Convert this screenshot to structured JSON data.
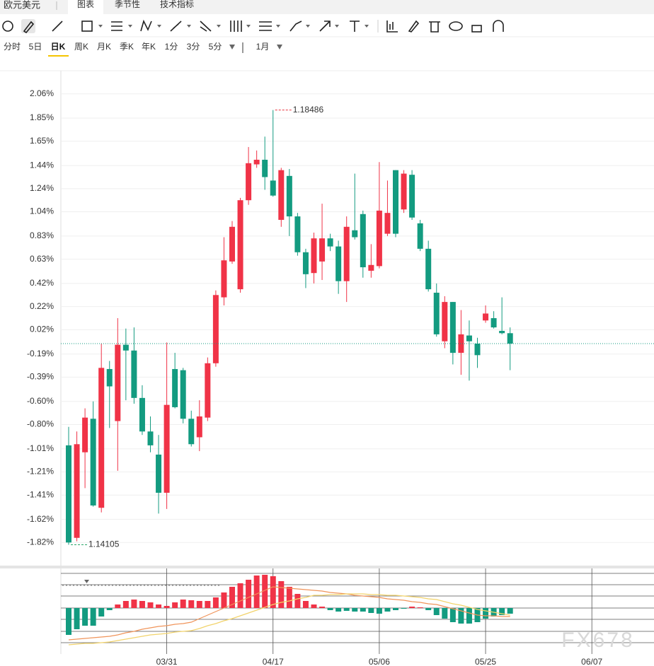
{
  "header": {
    "title": "欧元美元",
    "tabs": [
      "图表",
      "季节性",
      "技术指标"
    ]
  },
  "periods": [
    "分时",
    "5日",
    "日K",
    "周K",
    "月K",
    "季K",
    "年K",
    "1分",
    "3分",
    "5分"
  ],
  "range": "1月",
  "watermark": "FX678",
  "chart_data": [
    {
      "type": "candlestick",
      "categories": [
        null,
        null,
        null,
        null,
        null,
        null,
        null,
        null,
        null,
        null,
        null,
        null,
        "03/31",
        null,
        null,
        null,
        null,
        null,
        null,
        null,
        null,
        null,
        null,
        null,
        null,
        "04/17",
        null,
        null,
        null,
        null,
        null,
        null,
        null,
        null,
        null,
        null,
        null,
        null,
        "05/06",
        null,
        null,
        null,
        null,
        null,
        null,
        null,
        null,
        null,
        null,
        null,
        null,
        "05/25",
        null,
        null,
        null,
        null,
        null,
        null,
        null,
        null,
        null,
        null,
        null,
        null,
        "06/07"
      ],
      "open": [
        -0.98,
        -1.78,
        -1.04,
        -0.75,
        -1.52,
        -0.32,
        -0.77,
        -0.11,
        -0.16,
        -0.57,
        -0.86,
        -1.06,
        -1.39,
        -0.32,
        -0.33,
        -0.75,
        -0.91,
        -0.74,
        -0.27,
        0.3,
        0.61,
        0.37,
        1.14,
        1.45,
        1.49,
        1.31,
        0.97,
        1.35,
        1.0,
        0.69,
        0.51,
        0.61,
        0.81,
        0.74,
        0.44,
        0.88,
        1.02,
        0.53,
        0.57,
        0.85,
        1.4,
        1.06,
        1.36,
        0.94,
        0.72,
        0.34,
        -0.08,
        0.26,
        -0.18,
        -0.03,
        -0.1,
        0.1,
        0.12,
        0.01,
        -0.01,
        null,
        null,
        null,
        null,
        null,
        null,
        null,
        null,
        null,
        null
      ],
      "high": [
        -0.82,
        -0.86,
        -0.66,
        -0.6,
        -0.1,
        -0.25,
        0.12,
        0.03,
        0.04,
        -0.46,
        -0.73,
        -0.89,
        -0.09,
        -0.18,
        -0.31,
        -0.68,
        -0.59,
        -0.22,
        0.36,
        0.82,
        0.96,
        1.16,
        1.6,
        1.57,
        1.69,
        1.92,
        1.42,
        1.41,
        1.03,
        0.72,
        0.86,
        1.11,
        0.85,
        0.79,
        1.0,
        1.37,
        1.05,
        0.76,
        1.47,
        1.31,
        1.4,
        1.4,
        1.4,
        0.97,
        0.79,
        0.42,
        0.31,
        0.26,
        0.19,
        0.1,
        -0.05,
        0.23,
        0.18,
        0.3,
        0.04,
        null,
        null,
        null,
        null,
        null,
        null,
        null,
        null,
        null,
        null
      ],
      "low": [
        -1.84,
        -1.81,
        -1.35,
        -1.51,
        -1.56,
        -0.83,
        -1.2,
        -0.59,
        -0.62,
        -0.89,
        -1.04,
        -1.57,
        -1.53,
        -0.66,
        -0.79,
        -0.99,
        -1.03,
        -0.77,
        -0.3,
        0.23,
        0.59,
        0.34,
        1.1,
        1.42,
        1.23,
        1.17,
        0.91,
        0.83,
        0.66,
        0.38,
        0.42,
        0.45,
        0.7,
        0.33,
        0.26,
        0.8,
        0.47,
        0.47,
        0.55,
        0.83,
        0.82,
        1.03,
        0.97,
        0.7,
        0.35,
        -0.04,
        -0.14,
        -0.28,
        -0.37,
        -0.42,
        -0.31,
        0.08,
        0.03,
        -0.02,
        -0.33,
        null,
        null,
        null,
        null,
        null,
        null,
        null,
        null,
        null,
        null
      ],
      "close": [
        -1.82,
        -0.97,
        -0.74,
        -1.5,
        -0.31,
        -0.47,
        -0.11,
        -0.16,
        -0.57,
        -0.86,
        -0.98,
        -1.39,
        -0.63,
        -0.65,
        -0.75,
        -0.97,
        -0.73,
        -0.27,
        0.32,
        0.62,
        0.91,
        1.14,
        1.46,
        1.49,
        1.34,
        1.18,
        1.4,
        1.0,
        0.69,
        0.5,
        0.81,
        0.81,
        0.74,
        0.44,
        0.91,
        0.82,
        0.56,
        0.58,
        1.05,
        1.03,
        0.85,
        1.37,
        0.99,
        0.72,
        0.37,
        -0.02,
        0.26,
        -0.18,
        -0.02,
        -0.08,
        -0.2,
        0.16,
        0.04,
        -0.01,
        -0.1,
        null,
        null,
        null,
        null,
        null,
        null,
        null,
        null,
        null,
        null
      ],
      "up_color": "#f03347",
      "down_color": "#139b80",
      "ylim": [
        -2.02,
        2.26
      ],
      "yticks": [
        {
          "value": 2.06,
          "label": "2.06%"
        },
        {
          "value": 1.85,
          "label": "1.85%"
        },
        {
          "value": 1.65,
          "label": "1.65%"
        },
        {
          "value": 1.44,
          "label": "1.44%"
        },
        {
          "value": 1.24,
          "label": "1.24%"
        },
        {
          "value": 1.04,
          "label": "1.04%"
        },
        {
          "value": 0.83,
          "label": "0.83%"
        },
        {
          "value": 0.63,
          "label": "0.63%"
        },
        {
          "value": 0.42,
          "label": "0.42%"
        },
        {
          "value": 0.22,
          "label": "0.22%"
        },
        {
          "value": 0.02,
          "label": "0.02%"
        },
        {
          "value": -0.19,
          "label": "-0.19%"
        },
        {
          "value": -0.39,
          "label": "-0.39%"
        },
        {
          "value": -0.6,
          "label": "-0.60%"
        },
        {
          "value": -0.8,
          "label": "-0.80%"
        },
        {
          "value": -1.01,
          "label": "-1.01%"
        },
        {
          "value": -1.21,
          "label": "-1.21%"
        },
        {
          "value": -1.41,
          "label": "-1.41%"
        },
        {
          "value": -1.62,
          "label": "-1.62%"
        },
        {
          "value": -1.82,
          "label": "-1.82%"
        }
      ],
      "grid": true,
      "annotations": [
        {
          "text": "1.18486",
          "color": "#e8353f"
        },
        {
          "text": "1.14105",
          "color": "#2aa56a"
        }
      ]
    },
    {
      "type": "macd",
      "histogram": [
        -38,
        -30,
        -25,
        -25,
        -12,
        -3,
        5,
        10,
        12,
        10,
        8,
        5,
        3,
        8,
        12,
        11,
        10,
        10,
        15,
        22,
        30,
        35,
        40,
        46,
        47,
        45,
        38,
        30,
        20,
        10,
        5,
        2,
        -3,
        -5,
        -4,
        -5,
        -5,
        -7,
        -8,
        -5,
        -3,
        -1,
        2,
        1,
        -3,
        -10,
        -15,
        -20,
        -22,
        -22,
        -20,
        -15,
        -12,
        -10,
        -8,
        null,
        null,
        null,
        null,
        null,
        null,
        null,
        null,
        null,
        null
      ],
      "up_color": "#f03347",
      "down_color": "#139b80",
      "lines": [
        {
          "color": "#f0945a",
          "values": [
            -45,
            -44,
            -43,
            -42,
            -41,
            -40,
            -38,
            -35,
            -33,
            -30,
            -28,
            -26,
            -25,
            -23,
            -22,
            -20,
            -15,
            -10,
            -5,
            0,
            5,
            10,
            15,
            20,
            25,
            30,
            29,
            28,
            27,
            26,
            25,
            24,
            22,
            21,
            20,
            18,
            17,
            16,
            15,
            13,
            12,
            11,
            9,
            8,
            6,
            5,
            2,
            -1,
            -4,
            -7,
            -10,
            -11,
            -11,
            -12,
            -12,
            null,
            null,
            null,
            null,
            null,
            null,
            null,
            null,
            null,
            null
          ]
        },
        {
          "color": "#f2d36b",
          "values": [
            -52,
            -51,
            -50,
            -50,
            -49,
            -48,
            -46,
            -44,
            -42,
            -40,
            -38,
            -37,
            -36,
            -34,
            -33,
            -32,
            -29,
            -25,
            -22,
            -18,
            -15,
            -11,
            -7,
            -3,
            1,
            5,
            8,
            10,
            13,
            15,
            18,
            18,
            19,
            19,
            20,
            20,
            20,
            19,
            19,
            18,
            18,
            17,
            16,
            15,
            13,
            12,
            9,
            6,
            4,
            1,
            -2,
            -4,
            -6,
            -8,
            -10,
            null,
            null,
            null,
            null,
            null,
            null,
            null,
            null,
            null,
            null
          ]
        }
      ],
      "ylim": [
        -65,
        50
      ]
    }
  ]
}
